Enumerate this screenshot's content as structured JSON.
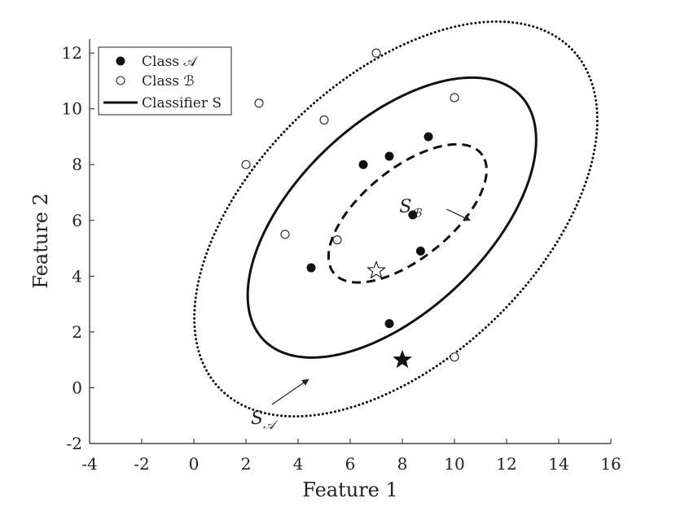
{
  "chart_data": {
    "type": "scatter",
    "title": "",
    "xlabel": "Feature 1",
    "ylabel": "Feature 2",
    "xlim": [
      -4,
      16
    ],
    "ylim": [
      -2,
      12.5
    ],
    "xticks": [
      "-4",
      "-2",
      "0",
      "2",
      "4",
      "6",
      "8",
      "10",
      "12",
      "14",
      "16"
    ],
    "yticks": [
      "-2",
      "0",
      "2",
      "4",
      "6",
      "8",
      "10",
      "12"
    ],
    "grid": false,
    "legend_position": "top-left",
    "legend": [
      {
        "label": "Class 𝒜",
        "marker": "filled-circle"
      },
      {
        "label": "Class ℬ",
        "marker": "open-circle"
      },
      {
        "label": "Classifier S",
        "marker": "solid-line"
      }
    ],
    "series": [
      {
        "name": "Class 𝒜",
        "points": [
          {
            "x": 4.5,
            "y": 4.3
          },
          {
            "x": 6.5,
            "y": 8.0
          },
          {
            "x": 7.5,
            "y": 8.3
          },
          {
            "x": 9.0,
            "y": 9.0
          },
          {
            "x": 8.4,
            "y": 6.2
          },
          {
            "x": 8.7,
            "y": 4.9
          },
          {
            "x": 7.5,
            "y": 2.3
          }
        ]
      },
      {
        "name": "Class ℬ",
        "points": [
          {
            "x": 7.0,
            "y": 12.0
          },
          {
            "x": 10.0,
            "y": 10.4
          },
          {
            "x": 2.5,
            "y": 10.2
          },
          {
            "x": 5.0,
            "y": 9.6
          },
          {
            "x": 2.0,
            "y": 8.0
          },
          {
            "x": 3.5,
            "y": 5.5
          },
          {
            "x": 5.5,
            "y": 5.3
          },
          {
            "x": 10.0,
            "y": 1.1
          }
        ]
      }
    ],
    "stars": [
      {
        "x": 8.0,
        "y": 1.0,
        "style": "filled"
      },
      {
        "x": 7.0,
        "y": 4.2,
        "style": "open"
      }
    ],
    "ellipses": [
      {
        "name": "S",
        "style": "solid",
        "center": [
          7.6,
          6.1
        ],
        "semi_axes": [
          6.6,
          3.5
        ],
        "angle_deg": 40
      },
      {
        "name": "S𝒜",
        "style": "dotted",
        "center": [
          7.75,
          6.05
        ],
        "semi_axes": [
          9.1,
          5.2
        ],
        "angle_deg": 40
      },
      {
        "name": "Sℬ",
        "style": "dashed",
        "center": [
          8.2,
          6.25
        ],
        "semi_axes": [
          3.55,
          1.65
        ],
        "angle_deg": 36
      }
    ],
    "annotations": [
      {
        "text": "S",
        "subscript": "𝒜",
        "from": [
          3.0,
          -0.6
        ],
        "to": [
          4.4,
          0.3
        ]
      },
      {
        "text": "S",
        "subscript": "ℬ",
        "from": [
          9.7,
          6.4
        ],
        "to": [
          10.6,
          6.0
        ]
      }
    ]
  }
}
